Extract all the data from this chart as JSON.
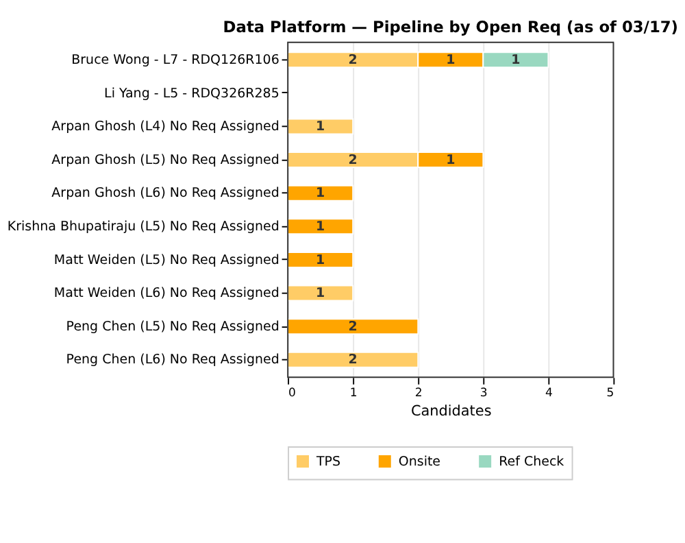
{
  "chart_data": {
    "type": "bar",
    "orientation": "horizontal",
    "stacked": true,
    "title": "Data Platform — Pipeline by Open Req (as of 03/17)",
    "xlabel": "Candidates",
    "categories": [
      "Bruce Wong - L7 - RDQ126R106",
      "Li Yang - L5 - RDQ326R285",
      "Arpan Ghosh (L4) No Req Assigned",
      "Arpan Ghosh (L5) No Req Assigned",
      "Arpan Ghosh (L6) No Req Assigned",
      "Krishna Bhupatiraju (L5) No Req Assigned",
      "Matt Weiden (L5) No Req Assigned",
      "Matt Weiden (L6) No Req Assigned",
      "Peng Chen (L5) No Req Assigned",
      "Peng Chen (L6) No Req Assigned"
    ],
    "series": [
      {
        "name": "TPS",
        "color": "#ffcc66",
        "values": [
          2,
          null,
          1,
          2,
          null,
          null,
          null,
          1,
          null,
          2
        ]
      },
      {
        "name": "Onsite",
        "color": "#ffa500",
        "values": [
          1,
          null,
          null,
          1,
          1,
          1,
          1,
          null,
          2,
          null
        ]
      },
      {
        "name": "Ref Check",
        "color": "#99d8c0",
        "values": [
          1,
          null,
          null,
          null,
          null,
          null,
          null,
          null,
          null,
          null
        ]
      }
    ],
    "xlim": [
      0,
      5
    ],
    "xticks": [
      0,
      1,
      2,
      3,
      4,
      5
    ],
    "grid": "x",
    "legend": "bottom",
    "data_labels": true
  }
}
